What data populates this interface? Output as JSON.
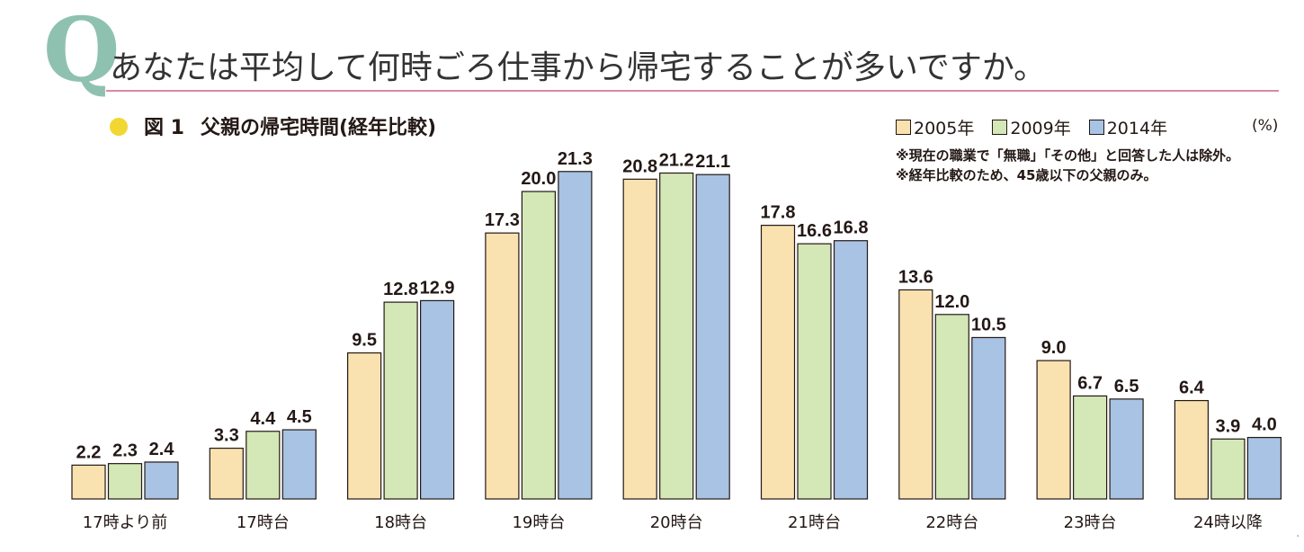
{
  "header": {
    "q_letter": "Q",
    "question": "あなたは平均して何時ごろ仕事から帰宅することが多いですか。"
  },
  "figure": {
    "number": "図 1",
    "title": "父親の帰宅時間(経年比較)",
    "unit": "(%)",
    "notes": [
      "※現在の職業で「無職」「その他」と回答した人は除外。",
      "※経年比較のため、45歳以下の父親のみ。"
    ]
  },
  "colors": {
    "accent_q": "#8fc1b0",
    "rule": "#d98aa5",
    "dot": "#f2d732",
    "s2005": "#f9e2b0",
    "s2009": "#d4e7b6",
    "s2014": "#a8c3e3"
  },
  "chart_data": {
    "type": "bar",
    "title": "父親の帰宅時間(経年比較)",
    "xlabel": "",
    "ylabel": "(%)",
    "ylim": [
      0,
      22
    ],
    "grid": false,
    "legend_position": "top-right",
    "categories": [
      "17時より前",
      "17時台",
      "18時台",
      "19時台",
      "20時台",
      "21時台",
      "22時台",
      "23時台",
      "24時以降"
    ],
    "series": [
      {
        "name": "2005年",
        "color": "#f9e2b0",
        "values": [
          2.2,
          3.3,
          9.5,
          17.3,
          20.8,
          17.8,
          13.6,
          9.0,
          6.4
        ]
      },
      {
        "name": "2009年",
        "color": "#d4e7b6",
        "values": [
          2.3,
          4.4,
          12.8,
          20.0,
          21.2,
          16.6,
          12.0,
          6.7,
          3.9
        ]
      },
      {
        "name": "2014年",
        "color": "#a8c3e3",
        "values": [
          2.4,
          4.5,
          12.9,
          21.3,
          21.1,
          16.8,
          10.5,
          6.5,
          4.0
        ]
      }
    ]
  }
}
